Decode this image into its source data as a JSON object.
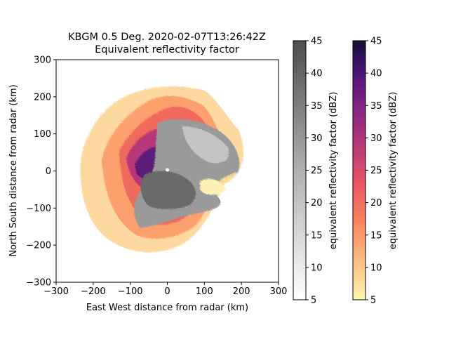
{
  "chart_data": {
    "type": "heatmap",
    "title_line1": "KBGM 0.5 Deg. 2020-02-07T13:26:42Z",
    "title_line2": "Equivalent reflectivity factor",
    "xlabel": "East West distance from radar (km)",
    "ylabel": "North South distance from radar (km)",
    "xlim": [
      -300,
      300
    ],
    "ylim": [
      -300,
      300
    ],
    "xticks": [
      -300,
      -200,
      -100,
      0,
      100,
      200,
      300
    ],
    "yticks": [
      -300,
      -200,
      -100,
      0,
      100,
      200,
      300
    ],
    "xtick_labels": [
      "−300",
      "−200",
      "−100",
      "0",
      "100",
      "200",
      "300"
    ],
    "ytick_labels": [
      "−300",
      "−200",
      "−100",
      "0",
      "100",
      "200",
      "300"
    ],
    "colorbars": [
      {
        "label": "equivalent reflectivity factor (dBZ)",
        "colormap": "gray",
        "range": [
          5,
          45
        ],
        "ticks": [
          5,
          10,
          15,
          20,
          25,
          30,
          35,
          40,
          45
        ],
        "color_low": "#ffffff",
        "color_high": "#4d4d4d"
      },
      {
        "label": "equivalent reflectivity factor (dBZ)",
        "colormap": "magma",
        "range": [
          5,
          45
        ],
        "ticks": [
          5,
          10,
          15,
          20,
          25,
          30,
          35,
          40,
          45
        ],
        "color_low": "#fcf6b4",
        "color_high": "#130d30"
      }
    ]
  }
}
